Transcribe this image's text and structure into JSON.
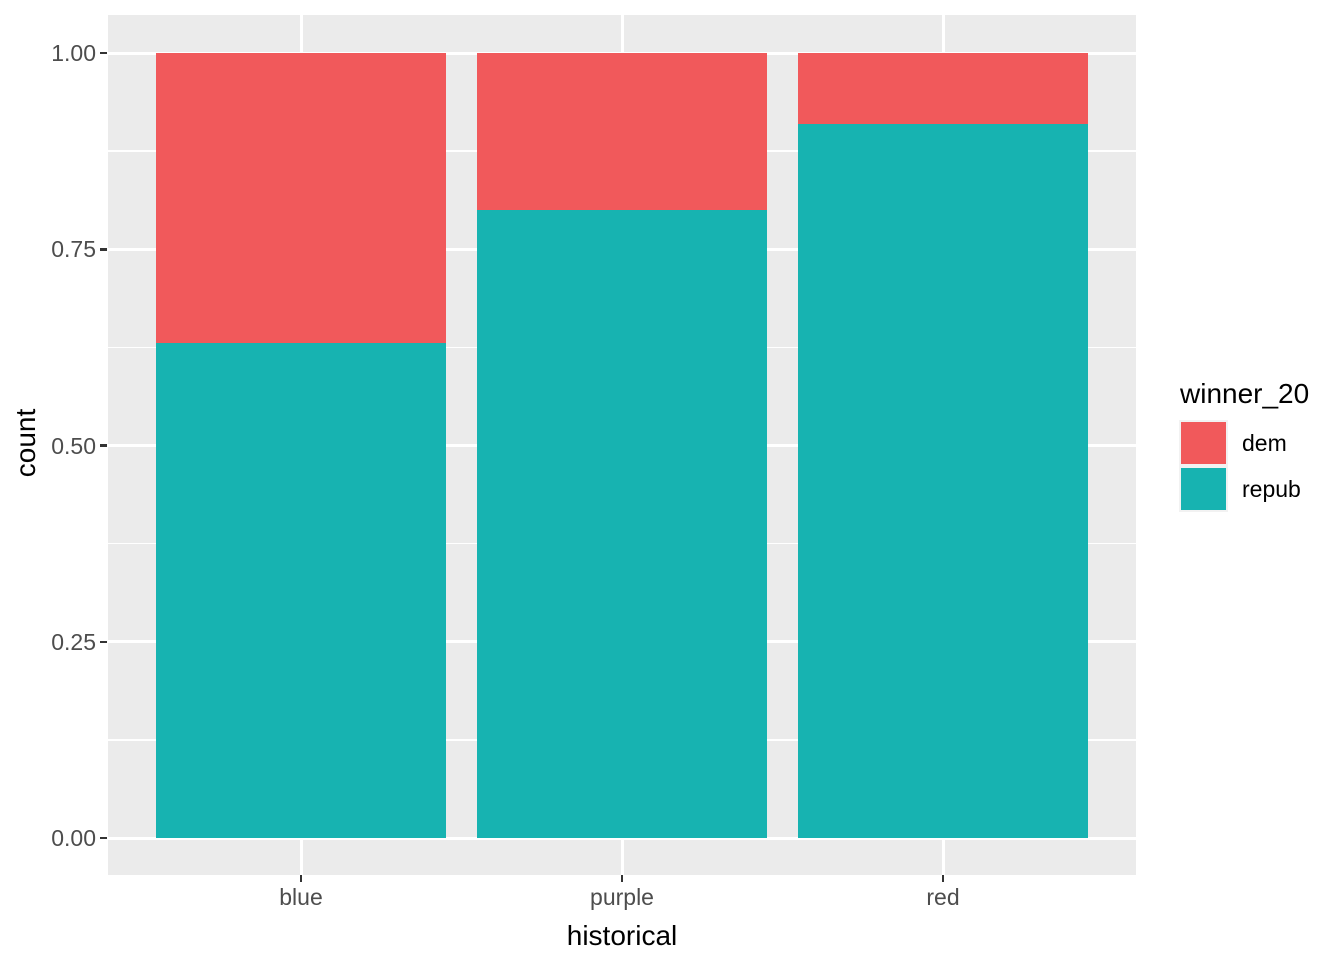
{
  "figure": {
    "background": "#FFFFFF",
    "panel_background": "#EBEBEB",
    "grid_color": "#FFFFFF",
    "tick_mark_color": "#333333",
    "tick_label_color": "#4D4D4D",
    "title_color": "#000000",
    "legend_key_background": "#F2F2F2"
  },
  "axes": {
    "x": {
      "title": "historical",
      "tick_labels": [
        "blue",
        "purple",
        "red"
      ]
    },
    "y": {
      "title": "count",
      "tick_labels": [
        "0.00",
        "0.25",
        "0.50",
        "0.75",
        "1.00"
      ]
    }
  },
  "legend": {
    "title": "winner_20",
    "position": "right",
    "items": [
      {
        "label": "dem",
        "color": "#F1595B"
      },
      {
        "label": "repub",
        "color": "#17B3B1"
      }
    ]
  },
  "chart_data": {
    "type": "bar",
    "subtype": "stacked-fill",
    "title": "",
    "xlabel": "historical",
    "ylabel": "count",
    "categories": [
      "blue",
      "purple",
      "red"
    ],
    "series": [
      {
        "name": "dem",
        "color": "#F1595B",
        "values": [
          0.37,
          0.2,
          0.09
        ]
      },
      {
        "name": "repub",
        "color": "#17B3B1",
        "values": [
          0.63,
          0.8,
          0.91
        ]
      }
    ],
    "stack_order_top_to_bottom": [
      "dem",
      "repub"
    ],
    "ylim": [
      0,
      1
    ],
    "yticks": [
      0,
      0.25,
      0.5,
      0.75,
      1
    ],
    "yticks_minor": [
      0.125,
      0.375,
      0.625,
      0.875
    ],
    "legend_title": "winner_20",
    "legend_position": "right",
    "grid": true,
    "panel_theme": "ggplot2-grey"
  }
}
